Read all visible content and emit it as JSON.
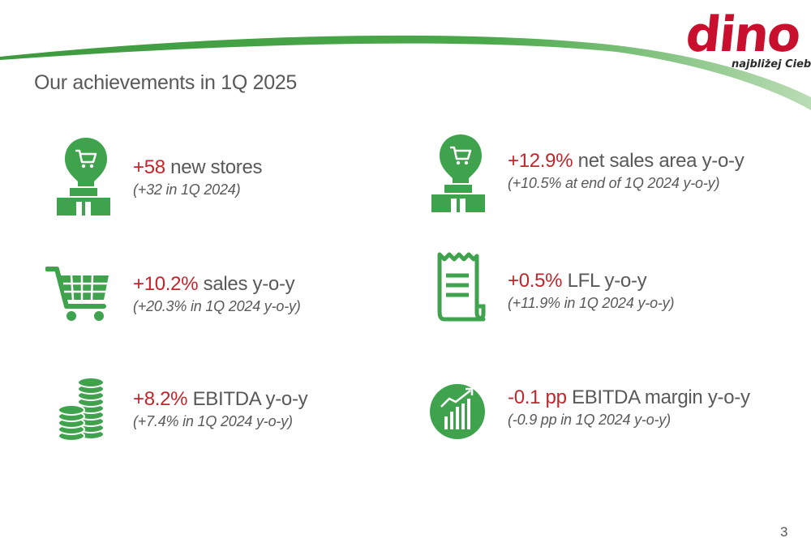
{
  "slide": {
    "title": "Our achievements in 1Q 2025",
    "page_number": "3"
  },
  "logo": {
    "wordmark": "dino",
    "tagline": "najbliżej Ciebie"
  },
  "colors": {
    "accent_green": "#3fa34d",
    "highlight_red": "#c0262c",
    "text_gray": "#595959"
  },
  "achievements": [
    {
      "icon": "store-icon",
      "highlight": "+58",
      "label": " new stores",
      "note": "(+32 in 1Q 2024)"
    },
    {
      "icon": "store-icon",
      "highlight": "+12.9%",
      "label": " net sales area y-o-y",
      "note": "(+10.5% at end of 1Q 2024 y-o-y)"
    },
    {
      "icon": "shopping-cart-icon",
      "highlight": "+10.2%",
      "label": " sales y-o-y",
      "note": "(+20.3% in 1Q 2024 y-o-y)"
    },
    {
      "icon": "receipt-icon",
      "highlight": "+0.5%",
      "label": " LFL y-o-y",
      "note": "(+11.9% in 1Q 2024 y-o-y)"
    },
    {
      "icon": "coins-icon",
      "highlight": "+8.2%",
      "label": " EBITDA y-o-y",
      "note": "(+7.4% in 1Q 2024 y-o-y)"
    },
    {
      "icon": "growth-chart-icon",
      "highlight": "-0.1 pp",
      "label": " EBITDA margin y-o-y",
      "note": "(-0.9 pp in 1Q 2024 y-o-y)"
    }
  ]
}
